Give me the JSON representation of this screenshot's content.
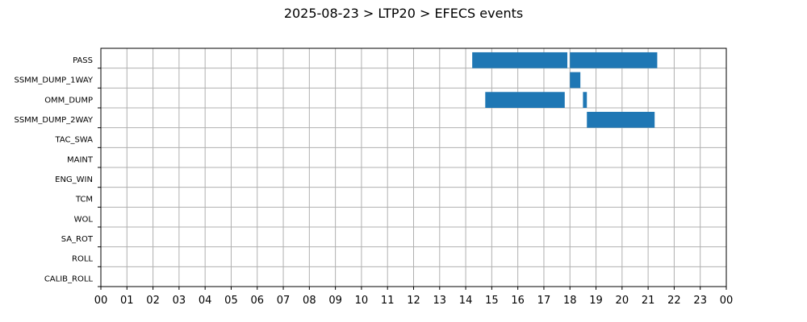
{
  "chart_data": {
    "type": "bar",
    "orientation": "horizontal-timeline",
    "title": "2025-08-23 > LTP20 > EFECS events",
    "xlabel": "",
    "ylabel": "",
    "xlim": [
      0,
      24
    ],
    "x_tick_labels": [
      "00",
      "01",
      "02",
      "03",
      "04",
      "05",
      "06",
      "07",
      "08",
      "09",
      "10",
      "11",
      "12",
      "13",
      "14",
      "15",
      "16",
      "17",
      "18",
      "19",
      "20",
      "21",
      "22",
      "23",
      "00"
    ],
    "grid": true,
    "bar_color": "#1f77b4",
    "categories": [
      "PASS",
      "SSMM_DUMP_1WAY",
      "OMM_DUMP",
      "SSMM_DUMP_2WAY",
      "TAC_SWA",
      "MAINT",
      "ENG_WIN",
      "TCM",
      "WOL",
      "SA_ROT",
      "ROLL",
      "CALIB_ROLL"
    ],
    "events": [
      {
        "category": "PASS",
        "start": 14.25,
        "end": 17.9
      },
      {
        "category": "PASS",
        "start": 18.0,
        "end": 21.35
      },
      {
        "category": "SSMM_DUMP_1WAY",
        "start": 18.0,
        "end": 18.4
      },
      {
        "category": "OMM_DUMP",
        "start": 14.75,
        "end": 17.8
      },
      {
        "category": "OMM_DUMP",
        "start": 18.5,
        "end": 18.65
      },
      {
        "category": "SSMM_DUMP_2WAY",
        "start": 18.65,
        "end": 21.25
      }
    ]
  }
}
